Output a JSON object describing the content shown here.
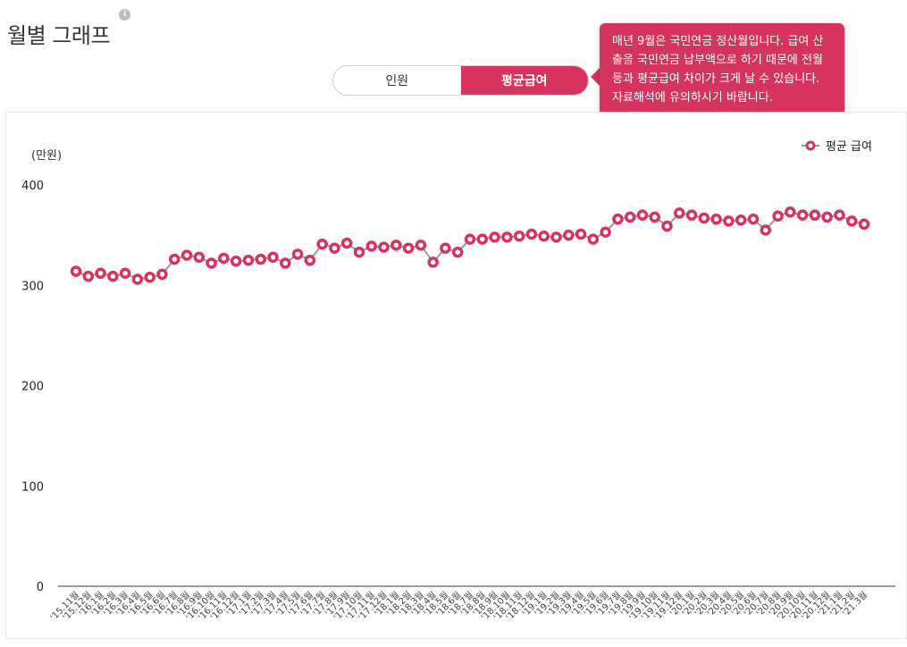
{
  "page": {
    "title": "월별 그래프",
    "info_icon": "info-icon"
  },
  "toggle": {
    "options": [
      {
        "label": "인원",
        "active": false
      },
      {
        "label": "평균급여",
        "active": true
      }
    ]
  },
  "tooltip": {
    "text": "매년 9월은 국민연금 정산월입니다. 급여 산출을 국민연금 납부액으로 하기 때문에 전월 등과 평균급여 차이가 크게 날 수 있습니다. 자료해석에 유의하시기 바랍니다."
  },
  "colors": {
    "accent": "#d6335f",
    "line": "#999999",
    "axis": "#333333"
  },
  "chart_data": {
    "type": "line",
    "unit_label": "(만원)",
    "ylim": [
      0,
      400
    ],
    "yticks": [
      0,
      100,
      200,
      300,
      400
    ],
    "grid": false,
    "legend_position": "top-right",
    "categories": [
      "'15.11월",
      "'15.12월",
      "'16.1월",
      "'16.2월",
      "'16.3월",
      "'16.4월",
      "'16.5월",
      "'16.6월",
      "'16.7월",
      "'16.8월",
      "'16.9월",
      "'16.10월",
      "'16.11월",
      "'16.12월",
      "'17.1월",
      "'17.2월",
      "'17.3월",
      "'17.4월",
      "'17.5월",
      "'17.6월",
      "'17.7월",
      "'17.8월",
      "'17.9월",
      "'17.10월",
      "'17.11월",
      "'17.12월",
      "'18.1월",
      "'18.2월",
      "'18.3월",
      "'18.4월",
      "'18.5월",
      "'18.6월",
      "'18.7월",
      "'18.8월",
      "'18.9월",
      "'18.10월",
      "'18.11월",
      "'18.12월",
      "'19.1월",
      "'19.2월",
      "'19.3월",
      "'19.4월",
      "'19.5월",
      "'19.6월",
      "'19.7월",
      "'19.8월",
      "'19.9월",
      "'19.10월",
      "'19.11월",
      "'19.12월",
      "'20.1월",
      "'20.2월",
      "'20.3월",
      "'20.4월",
      "'20.5월",
      "'20.6월",
      "'20.7월",
      "'20.8월",
      "'20.9월",
      "'20.10월",
      "'20.11월",
      "'20.12월",
      "'21.1월",
      "'21.2월",
      "'21.3월"
    ],
    "series": [
      {
        "name": "평균 급여",
        "values": [
          314,
          309,
          312,
          309,
          312,
          306,
          308,
          311,
          326,
          330,
          328,
          322,
          327,
          324,
          325,
          326,
          328,
          322,
          331,
          325,
          341,
          337,
          342,
          333,
          339,
          338,
          340,
          337,
          340,
          323,
          337,
          333,
          346,
          346,
          348,
          348,
          349,
          351,
          349,
          348,
          350,
          351,
          346,
          353,
          366,
          368,
          370,
          368,
          359,
          372,
          370,
          367,
          366,
          364,
          365,
          366,
          355,
          369,
          373,
          370,
          370,
          368,
          370,
          364,
          361
        ]
      }
    ]
  }
}
